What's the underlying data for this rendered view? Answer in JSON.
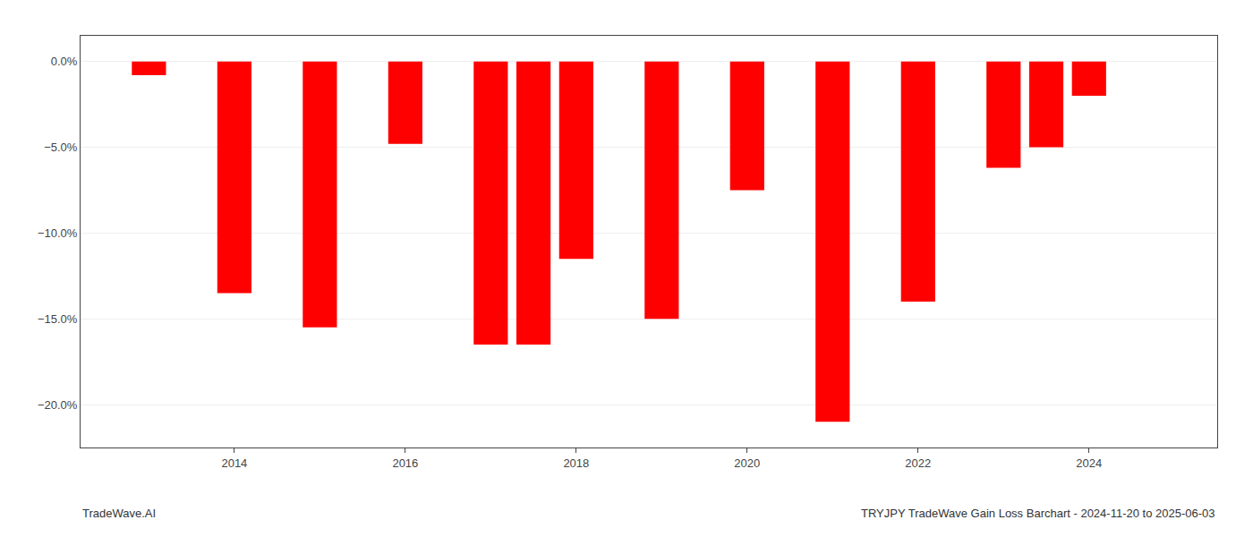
{
  "chart_data": {
    "type": "bar",
    "x": [
      2013,
      2014,
      2015,
      2016,
      2017,
      2017.5,
      2018,
      2019,
      2020,
      2021,
      2022,
      2023,
      2023.5,
      2024
    ],
    "values": [
      -0.8,
      -13.5,
      -15.5,
      -4.8,
      -16.5,
      -16.5,
      -11.5,
      -15.0,
      -7.5,
      -21.0,
      -14.0,
      -6.2,
      -5.0,
      -2.0
    ],
    "color": "#ff0000",
    "xlim": [
      2012.2,
      2025.5
    ],
    "xticks": [
      2014,
      2016,
      2018,
      2020,
      2022,
      2024
    ],
    "ylim": [
      -22.5,
      1.5
    ],
    "yticks": [
      {
        "value": 0.0,
        "label": "0.0%"
      },
      {
        "value": -5.0,
        "label": "−5.0%"
      },
      {
        "value": -10.0,
        "label": "−10.0%"
      },
      {
        "value": -15.0,
        "label": "−15.0%"
      },
      {
        "value": -20.0,
        "label": "−20.0%"
      }
    ],
    "grid": true,
    "annotations": [
      "TradeWave.AI",
      "TRYJPY TradeWave Gain Loss Barchart - 2024-11-20 to 2025-06-03"
    ]
  }
}
